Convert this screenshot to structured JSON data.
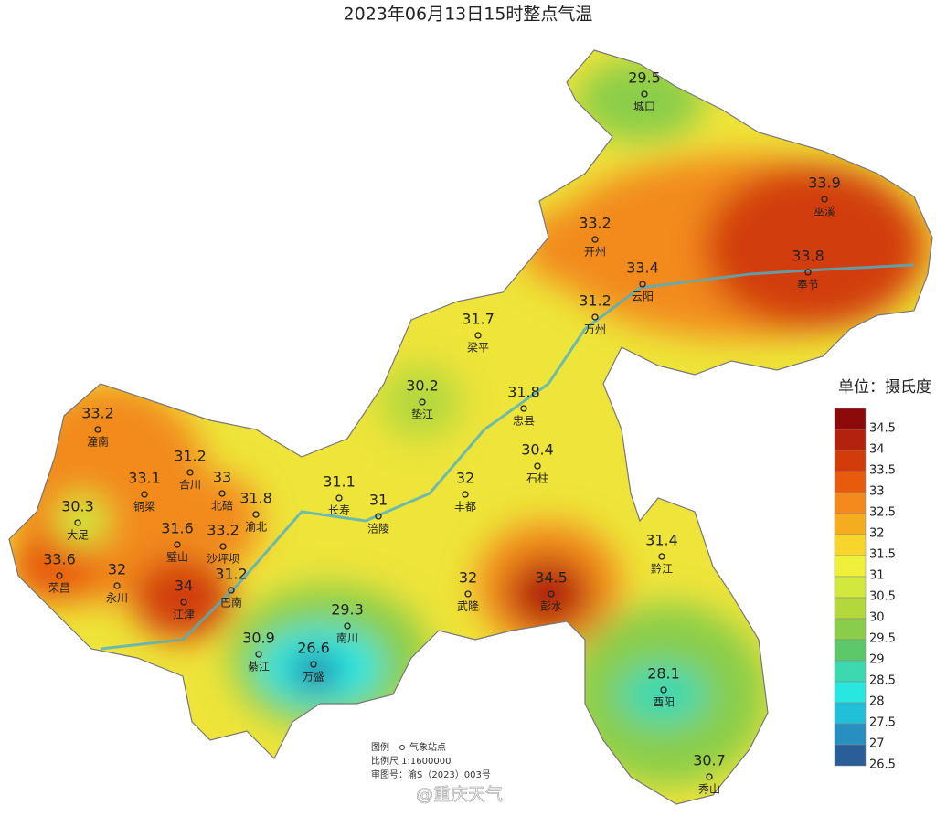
{
  "title": "2023年06月13日15时整点气温",
  "stations": [
    {
      "name": "城口",
      "value": 29.5
    },
    {
      "name": "巫溪",
      "value": 33.9
    },
    {
      "name": "开州",
      "value": 33.2
    },
    {
      "name": "奉节",
      "value": 33.8
    },
    {
      "name": "云阳",
      "value": 33.4
    },
    {
      "name": "万州",
      "value": 31.2
    },
    {
      "name": "梁平",
      "value": 31.7
    },
    {
      "name": "垫江",
      "value": 30.2
    },
    {
      "name": "忠县",
      "value": 31.8
    },
    {
      "name": "潼南",
      "value": 33.2
    },
    {
      "name": "石柱",
      "value": 30.4
    },
    {
      "name": "合川",
      "value": 31.2
    },
    {
      "name": "铜梁",
      "value": 33.1
    },
    {
      "name": "北碚",
      "value": 33
    },
    {
      "name": "渝北",
      "value": 31.8
    },
    {
      "name": "长寿",
      "value": 31.1
    },
    {
      "name": "丰都",
      "value": 32
    },
    {
      "name": "大足",
      "value": 30.3
    },
    {
      "name": "涪陵",
      "value": 31
    },
    {
      "name": "璧山",
      "value": 31.6
    },
    {
      "name": "沙坪坝",
      "value": 33.2
    },
    {
      "name": "荣昌",
      "value": 33.6
    },
    {
      "name": "永川",
      "value": 32
    },
    {
      "name": "江津",
      "value": 34
    },
    {
      "name": "巴南",
      "value": 31.2
    },
    {
      "name": "黔江",
      "value": 31.4
    },
    {
      "name": "武隆",
      "value": 32
    },
    {
      "name": "彭水",
      "value": 34.5
    },
    {
      "name": "南川",
      "value": 29.3
    },
    {
      "name": "綦江",
      "value": 30.9
    },
    {
      "name": "万盛",
      "value": 26.6
    },
    {
      "name": "酉阳",
      "value": 28.1
    },
    {
      "name": "秀山",
      "value": 30.7
    }
  ],
  "legend": {
    "unit": "单位：摄氏度",
    "ticks": [
      34.5,
      34,
      33.5,
      33,
      32.5,
      32,
      31.5,
      31,
      30.5,
      30,
      29.5,
      29,
      28.5,
      28,
      27.5,
      27,
      26.5
    ],
    "colors": [
      "#8c0a0a",
      "#b3220c",
      "#d23c0a",
      "#e85a0c",
      "#f28a1e",
      "#f5ad20",
      "#f7d52a",
      "#eef03a",
      "#d2e83c",
      "#b4d83c",
      "#8acd4a",
      "#5cc86a",
      "#3cd8b0",
      "#28e6e0",
      "#20c0d8",
      "#2890c0",
      "#2a5e98"
    ]
  },
  "footer": {
    "legend_label": "图例",
    "station_label": "气象站点",
    "scale": "比例尺  1:1600000",
    "approval": "审图号：渝S（2023）003号"
  },
  "watermark": "@重庆天气"
}
